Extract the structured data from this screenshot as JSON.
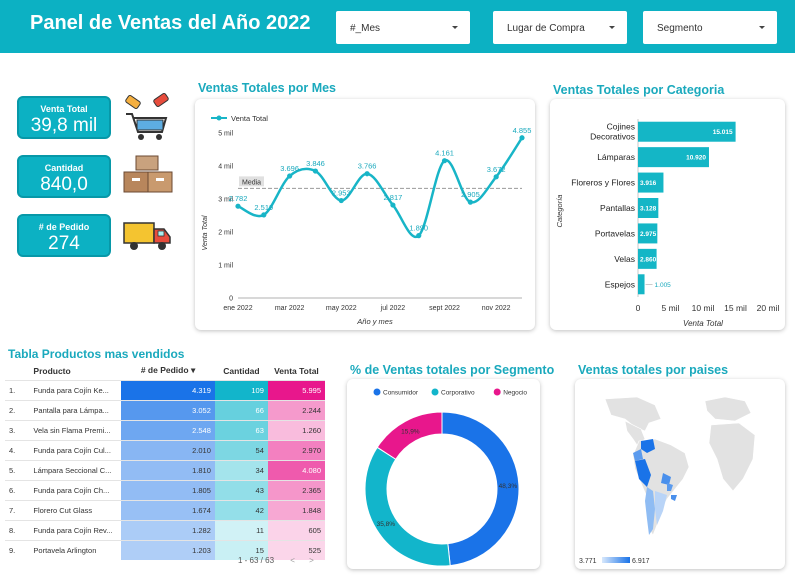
{
  "header": {
    "title": "Panel de Ventas del Año 2022",
    "filter_mes": "#_Mes",
    "filter_lugar": "Lugar de Compra",
    "filter_segmento": "Segmento"
  },
  "kpis": {
    "venta_total_label": "Venta Total",
    "venta_total_value": "39,8 mil",
    "cantidad_label": "Cantidad",
    "cantidad_value": "840,0",
    "pedido_label": "# de Pedido",
    "pedido_value": "274"
  },
  "colors": {
    "accent": "#0cb1c3",
    "line": "#18b5c7",
    "bar": "#14b6c6",
    "blue": "#1a73e8",
    "pink": "#e8178c"
  },
  "monthly_chart": {
    "title": "Ventas Totales por Mes",
    "legend": "Venta Total",
    "xlabel": "Año y mes",
    "ylabel": "Venta Total",
    "media_label": "Media",
    "chart_data": {
      "type": "line",
      "x": [
        "ene 2022",
        "feb 2022",
        "mar 2022",
        "abr 2022",
        "may 2022",
        "jun 2022",
        "jul 2022",
        "ago 2022",
        "sept 2022",
        "oct 2022",
        "nov 2022",
        "dic 2022"
      ],
      "values": [
        2782,
        2519,
        3696,
        3846,
        2953,
        3766,
        2817,
        1890,
        4161,
        2905,
        3672,
        4855
      ],
      "labels": [
        "2.782",
        "2.519",
        "3.696",
        "3.846",
        "2.953",
        "3.766",
        "2.817",
        "1.890",
        "4.161",
        "2.905",
        "3.672",
        "4.855"
      ],
      "xticks": [
        "ene 2022",
        "mar 2022",
        "may 2022",
        "jul 2022",
        "sept 2022",
        "nov 2022"
      ],
      "yticks": [
        "0",
        "1 mil",
        "2 mil",
        "3 mil",
        "4 mil",
        "5 mil"
      ],
      "ylim": [
        0,
        5000
      ],
      "mean": 3322
    }
  },
  "category_chart": {
    "title": "Ventas Totales por Categoria",
    "xlabel": "Venta Total",
    "ylabel": "Categoría",
    "chart_data": {
      "type": "bar",
      "categories": [
        [
          "Cojines",
          "Decorativos"
        ],
        [
          "Lámparas"
        ],
        [
          "Floreros y Flores"
        ],
        [
          "Pantallas"
        ],
        [
          "Portavelas"
        ],
        [
          "Velas"
        ],
        [
          "Espejos"
        ]
      ],
      "values": [
        15015,
        10920,
        3916,
        3128,
        2975,
        2860,
        1005
      ],
      "labels": [
        "15.015",
        "10.920",
        "3.916",
        "3.128",
        "2.975",
        "2.860",
        "1.005"
      ],
      "xticks": [
        "0",
        "5 mil",
        "10 mil",
        "15 mil",
        "20 mil"
      ],
      "xlim": [
        0,
        20000
      ]
    }
  },
  "table": {
    "title": "Tabla Productos mas vendidos",
    "headers": [
      "Producto",
      "# de Pedido",
      "Cantidad",
      "Venta Total"
    ],
    "rows": [
      [
        "1.",
        "Funda para Cojín Ke...",
        "4.319",
        "109",
        "5.995"
      ],
      [
        "2.",
        "Pantalla para Lámpa...",
        "3.052",
        "66",
        "2.244"
      ],
      [
        "3.",
        "Vela sin Flama Premi...",
        "2.548",
        "63",
        "1.260"
      ],
      [
        "4.",
        "Funda para Cojín Cul...",
        "2.010",
        "54",
        "2.970"
      ],
      [
        "5.",
        "Lámpara Seccional C...",
        "1.810",
        "34",
        "4.080"
      ],
      [
        "6.",
        "Funda para Cojín Ch...",
        "1.805",
        "43",
        "2.365"
      ],
      [
        "7.",
        "Florero Cut Glass",
        "1.674",
        "42",
        "1.848"
      ],
      [
        "8.",
        "Funda para Cojín Rev...",
        "1.282",
        "11",
        "605"
      ],
      [
        "9.",
        "Portavela Arlington",
        "1.203",
        "15",
        "525"
      ]
    ],
    "pager": "1 - 63 / 63"
  },
  "segment_chart": {
    "title": "% de Ventas totales por Segmento",
    "chart_data": {
      "type": "pie",
      "categories": [
        "Consumidor",
        "Corporativo",
        "Negocio"
      ],
      "values": [
        48.3,
        35.8,
        15.9
      ],
      "labels": [
        "48,3%",
        "35,8%",
        "15,9%"
      ],
      "colors": [
        "#1a73e8",
        "#12b5cb",
        "#e8178c"
      ]
    }
  },
  "map": {
    "title": "Ventas totales por paises",
    "scale_min": "3.771",
    "scale_max": "6.917"
  }
}
